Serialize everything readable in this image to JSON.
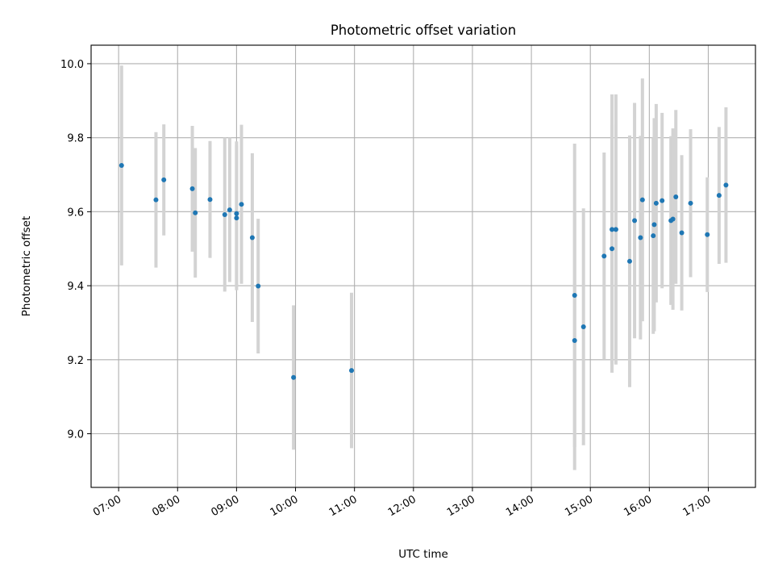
{
  "chart_data": {
    "type": "scatter",
    "title": "Photometric offset variation",
    "xlabel": "UTC time",
    "ylabel": "Photometric offset",
    "xlim": [
      "06:32",
      "17:48"
    ],
    "ylim": [
      8.855,
      10.05
    ],
    "xticks": [
      "07:00",
      "08:00",
      "09:00",
      "10:00",
      "11:00",
      "12:00",
      "13:00",
      "14:00",
      "15:00",
      "16:00",
      "17:00"
    ],
    "yticks": [
      "9.0",
      "9.2",
      "9.4",
      "9.6",
      "9.8",
      "10.0"
    ],
    "grid": true,
    "colors": {
      "point": "#1f77b4",
      "errorbar": "#d3d3d3",
      "grid": "#b0b0b0"
    },
    "points": [
      {
        "x": "07:03",
        "y": 9.725,
        "err": 0.27
      },
      {
        "x": "07:38",
        "y": 9.632,
        "err": 0.183
      },
      {
        "x": "07:46",
        "y": 9.686,
        "err": 0.15
      },
      {
        "x": "08:15",
        "y": 9.662,
        "err": 0.17
      },
      {
        "x": "08:18",
        "y": 9.597,
        "err": 0.175
      },
      {
        "x": "08:33",
        "y": 9.633,
        "err": 0.158
      },
      {
        "x": "08:48",
        "y": 9.592,
        "err": 0.208
      },
      {
        "x": "08:53",
        "y": 9.605,
        "err": 0.195
      },
      {
        "x": "09:00",
        "y": 9.595,
        "err": 0.195
      },
      {
        "x": "09:00",
        "y": 9.583,
        "err": 0.195
      },
      {
        "x": "09:05",
        "y": 9.62,
        "err": 0.215
      },
      {
        "x": "09:16",
        "y": 9.53,
        "err": 0.228
      },
      {
        "x": "09:22",
        "y": 9.399,
        "err": 0.182
      },
      {
        "x": "09:58",
        "y": 9.152,
        "err": 0.195
      },
      {
        "x": "10:57",
        "y": 9.171,
        "err": 0.21
      },
      {
        "x": "14:44",
        "y": 9.374,
        "err": 0.41
      },
      {
        "x": "14:44",
        "y": 9.252,
        "err": 0.35
      },
      {
        "x": "14:53",
        "y": 9.289,
        "err": 0.32
      },
      {
        "x": "15:14",
        "y": 9.48,
        "err": 0.28
      },
      {
        "x": "15:22",
        "y": 9.552,
        "err": 0.365
      },
      {
        "x": "15:22",
        "y": 9.5,
        "err": 0.335
      },
      {
        "x": "15:26",
        "y": 9.552,
        "err": 0.365
      },
      {
        "x": "15:40",
        "y": 9.466,
        "err": 0.34
      },
      {
        "x": "15:45",
        "y": 9.576,
        "err": 0.318
      },
      {
        "x": "15:51",
        "y": 9.53,
        "err": 0.275
      },
      {
        "x": "15:53",
        "y": 9.632,
        "err": 0.328
      },
      {
        "x": "16:04",
        "y": 9.535,
        "err": 0.265
      },
      {
        "x": "16:05",
        "y": 9.565,
        "err": 0.288
      },
      {
        "x": "16:07",
        "y": 9.623,
        "err": 0.268
      },
      {
        "x": "16:13",
        "y": 9.63,
        "err": 0.237
      },
      {
        "x": "16:22",
        "y": 9.576,
        "err": 0.228
      },
      {
        "x": "16:24",
        "y": 9.58,
        "err": 0.245
      },
      {
        "x": "16:27",
        "y": 9.64,
        "err": 0.235
      },
      {
        "x": "16:33",
        "y": 9.543,
        "err": 0.21
      },
      {
        "x": "16:42",
        "y": 9.623,
        "err": 0.2
      },
      {
        "x": "16:59",
        "y": 9.538,
        "err": 0.155
      },
      {
        "x": "17:11",
        "y": 9.644,
        "err": 0.185
      },
      {
        "x": "17:18",
        "y": 9.672,
        "err": 0.21
      }
    ]
  }
}
